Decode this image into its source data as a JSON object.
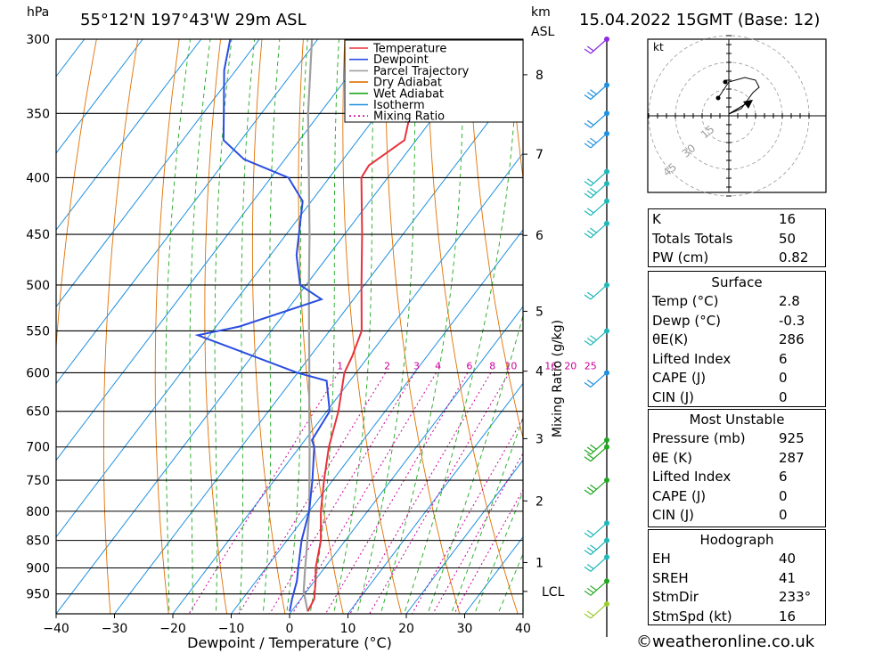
{
  "header": {
    "pressure_unit": "hPa",
    "location": "55°12'N  197°43'W  29m  ASL",
    "height_unit_1": "km",
    "height_unit_2": "ASL",
    "datetime": "15.04.2022  15GMT  (Base: 12)"
  },
  "chart_data": {
    "type": "skew-t log-p",
    "xlabel": "Dewpoint / Temperature (°C)",
    "ylabel_left": "hPa",
    "mixing_ratio_label": "Mixing Ratio (g/kg)",
    "x_ticks": [
      -40,
      -30,
      -20,
      -10,
      0,
      10,
      20,
      30,
      40
    ],
    "pressure_levels": [
      300,
      350,
      400,
      450,
      500,
      550,
      600,
      650,
      700,
      750,
      800,
      850,
      900,
      950
    ],
    "pressure_range": [
      300,
      990
    ],
    "height_ticks_km": [
      {
        "label": "8",
        "p": 323
      },
      {
        "label": "7",
        "p": 381
      },
      {
        "label": "6",
        "p": 451
      },
      {
        "label": "5",
        "p": 528
      },
      {
        "label": "4",
        "p": 598
      },
      {
        "label": "3",
        "p": 688
      },
      {
        "label": "2",
        "p": 783
      },
      {
        "label": "1",
        "p": 890
      },
      {
        "label": "LCL",
        "p": 945
      }
    ],
    "mixing_ratio_values": [
      1,
      2,
      3,
      4,
      6,
      8,
      10,
      16,
      20,
      25
    ],
    "legend": [
      "Temperature",
      "Dewpoint",
      "Parcel Trajectory",
      "Dry Adiabat",
      "Wet Adiabat",
      "Isotherm",
      "Mixing Ratio"
    ],
    "colors": {
      "temperature": "#e8323c",
      "dewpoint": "#2a4de0",
      "parcel": "#a0a0a0",
      "dry_adiabat": "#e07000",
      "wet_adiabat": "#1fa81f",
      "isotherm": "#1e90e0",
      "mixing_ratio": "#cc0099"
    },
    "temperature": [
      {
        "p": 985,
        "t": 2.8
      },
      {
        "p": 960,
        "t": 2.3
      },
      {
        "p": 925,
        "t": 0.2
      },
      {
        "p": 900,
        "t": -1.5
      },
      {
        "p": 850,
        "t": -4.2
      },
      {
        "p": 800,
        "t": -8.0
      },
      {
        "p": 750,
        "t": -11.5
      },
      {
        "p": 700,
        "t": -15.0
      },
      {
        "p": 650,
        "t": -18.0
      },
      {
        "p": 600,
        "t": -22.0
      },
      {
        "p": 580,
        "t": -22.8
      },
      {
        "p": 550,
        "t": -24.5
      },
      {
        "p": 500,
        "t": -30.5
      },
      {
        "p": 450,
        "t": -37.0
      },
      {
        "p": 400,
        "t": -44.5
      },
      {
        "p": 390,
        "t": -44.8
      },
      {
        "p": 370,
        "t": -42.0
      },
      {
        "p": 350,
        "t": -44.5
      },
      {
        "p": 320,
        "t": -47.0
      },
      {
        "p": 310,
        "t": -45.0
      },
      {
        "p": 300,
        "t": -44.0
      }
    ],
    "dewpoint": [
      {
        "p": 985,
        "t": -0.3
      },
      {
        "p": 960,
        "t": -1.5
      },
      {
        "p": 925,
        "t": -3.0
      },
      {
        "p": 900,
        "t": -4.5
      },
      {
        "p": 850,
        "t": -7.5
      },
      {
        "p": 800,
        "t": -10.0
      },
      {
        "p": 750,
        "t": -13.5
      },
      {
        "p": 700,
        "t": -17.5
      },
      {
        "p": 690,
        "t": -18.8
      },
      {
        "p": 650,
        "t": -19.5
      },
      {
        "p": 610,
        "t": -24.0
      },
      {
        "p": 600,
        "t": -30.0
      },
      {
        "p": 555,
        "t": -52.0
      },
      {
        "p": 545,
        "t": -46.0
      },
      {
        "p": 515,
        "t": -35.5
      },
      {
        "p": 500,
        "t": -41.0
      },
      {
        "p": 470,
        "t": -45.5
      },
      {
        "p": 420,
        "t": -51.5
      },
      {
        "p": 400,
        "t": -57.0
      },
      {
        "p": 385,
        "t": -67.0
      },
      {
        "p": 370,
        "t": -73.0
      },
      {
        "p": 320,
        "t": -82.0
      },
      {
        "p": 300,
        "t": -85.0
      }
    ],
    "parcel": [
      {
        "p": 985,
        "t": 2.8
      },
      {
        "p": 945,
        "t": -0.5
      },
      {
        "p": 900,
        "t": -3.3
      },
      {
        "p": 850,
        "t": -6.5
      },
      {
        "p": 800,
        "t": -10.0
      },
      {
        "p": 750,
        "t": -14.0
      },
      {
        "p": 700,
        "t": -18.3
      },
      {
        "p": 650,
        "t": -23.0
      },
      {
        "p": 600,
        "t": -28.0
      },
      {
        "p": 550,
        "t": -33.5
      },
      {
        "p": 500,
        "t": -39.5
      },
      {
        "p": 450,
        "t": -46.0
      },
      {
        "p": 400,
        "t": -53.5
      },
      {
        "p": 350,
        "t": -62.0
      },
      {
        "p": 300,
        "t": -71.0
      }
    ],
    "wind_barbs": [
      {
        "p": 300,
        "color": "#8a2be2"
      },
      {
        "p": 330,
        "color": "#1e90e0"
      },
      {
        "p": 350,
        "color": "#1e90e0"
      },
      {
        "p": 365,
        "color": "#1e90e0"
      },
      {
        "p": 395,
        "color": "#1fb8b8"
      },
      {
        "p": 405,
        "color": "#1fb8b8"
      },
      {
        "p": 420,
        "color": "#1fb8b8"
      },
      {
        "p": 440,
        "color": "#1fb8b8"
      },
      {
        "p": 500,
        "color": "#1fb8b8"
      },
      {
        "p": 550,
        "color": "#1fb8b8"
      },
      {
        "p": 600,
        "color": "#1e90e0"
      },
      {
        "p": 690,
        "color": "#1fa81f"
      },
      {
        "p": 700,
        "color": "#1fa81f"
      },
      {
        "p": 750,
        "color": "#1fa81f"
      },
      {
        "p": 820,
        "color": "#1fb8b8"
      },
      {
        "p": 850,
        "color": "#1fb8b8"
      },
      {
        "p": 880,
        "color": "#1fb8b8"
      },
      {
        "p": 925,
        "color": "#1fa81f"
      },
      {
        "p": 970,
        "color": "#9acd32"
      }
    ]
  },
  "hodograph": {
    "unit": "kt",
    "ring_labels": [
      "15",
      "30",
      "45"
    ]
  },
  "indices": {
    "rows": [
      {
        "k": "K",
        "v": "16"
      },
      {
        "k": "Totals Totals",
        "v": "50"
      },
      {
        "k": "PW (cm)",
        "v": "0.82"
      }
    ]
  },
  "surface": {
    "title": "Surface",
    "rows": [
      {
        "k": "Temp (°C)",
        "v": "2.8"
      },
      {
        "k": "Dewp (°C)",
        "v": "-0.3"
      },
      {
        "k": "θE(K)",
        "v": "286"
      },
      {
        "k": "Lifted Index",
        "v": "6"
      },
      {
        "k": "CAPE (J)",
        "v": "0"
      },
      {
        "k": "CIN (J)",
        "v": "0"
      }
    ]
  },
  "most_unstable": {
    "title": "Most Unstable",
    "rows": [
      {
        "k": "Pressure (mb)",
        "v": "925"
      },
      {
        "k": "θE (K)",
        "v": "287"
      },
      {
        "k": "Lifted Index",
        "v": "6"
      },
      {
        "k": "CAPE (J)",
        "v": "0"
      },
      {
        "k": "CIN (J)",
        "v": "0"
      }
    ]
  },
  "hodograph_table": {
    "title": "Hodograph",
    "rows": [
      {
        "k": "EH",
        "v": "40"
      },
      {
        "k": "SREH",
        "v": "41"
      },
      {
        "k": "StmDir",
        "v": "233°"
      },
      {
        "k": "StmSpd (kt)",
        "v": "16"
      }
    ]
  },
  "credit": "©weatheronline.co.uk"
}
